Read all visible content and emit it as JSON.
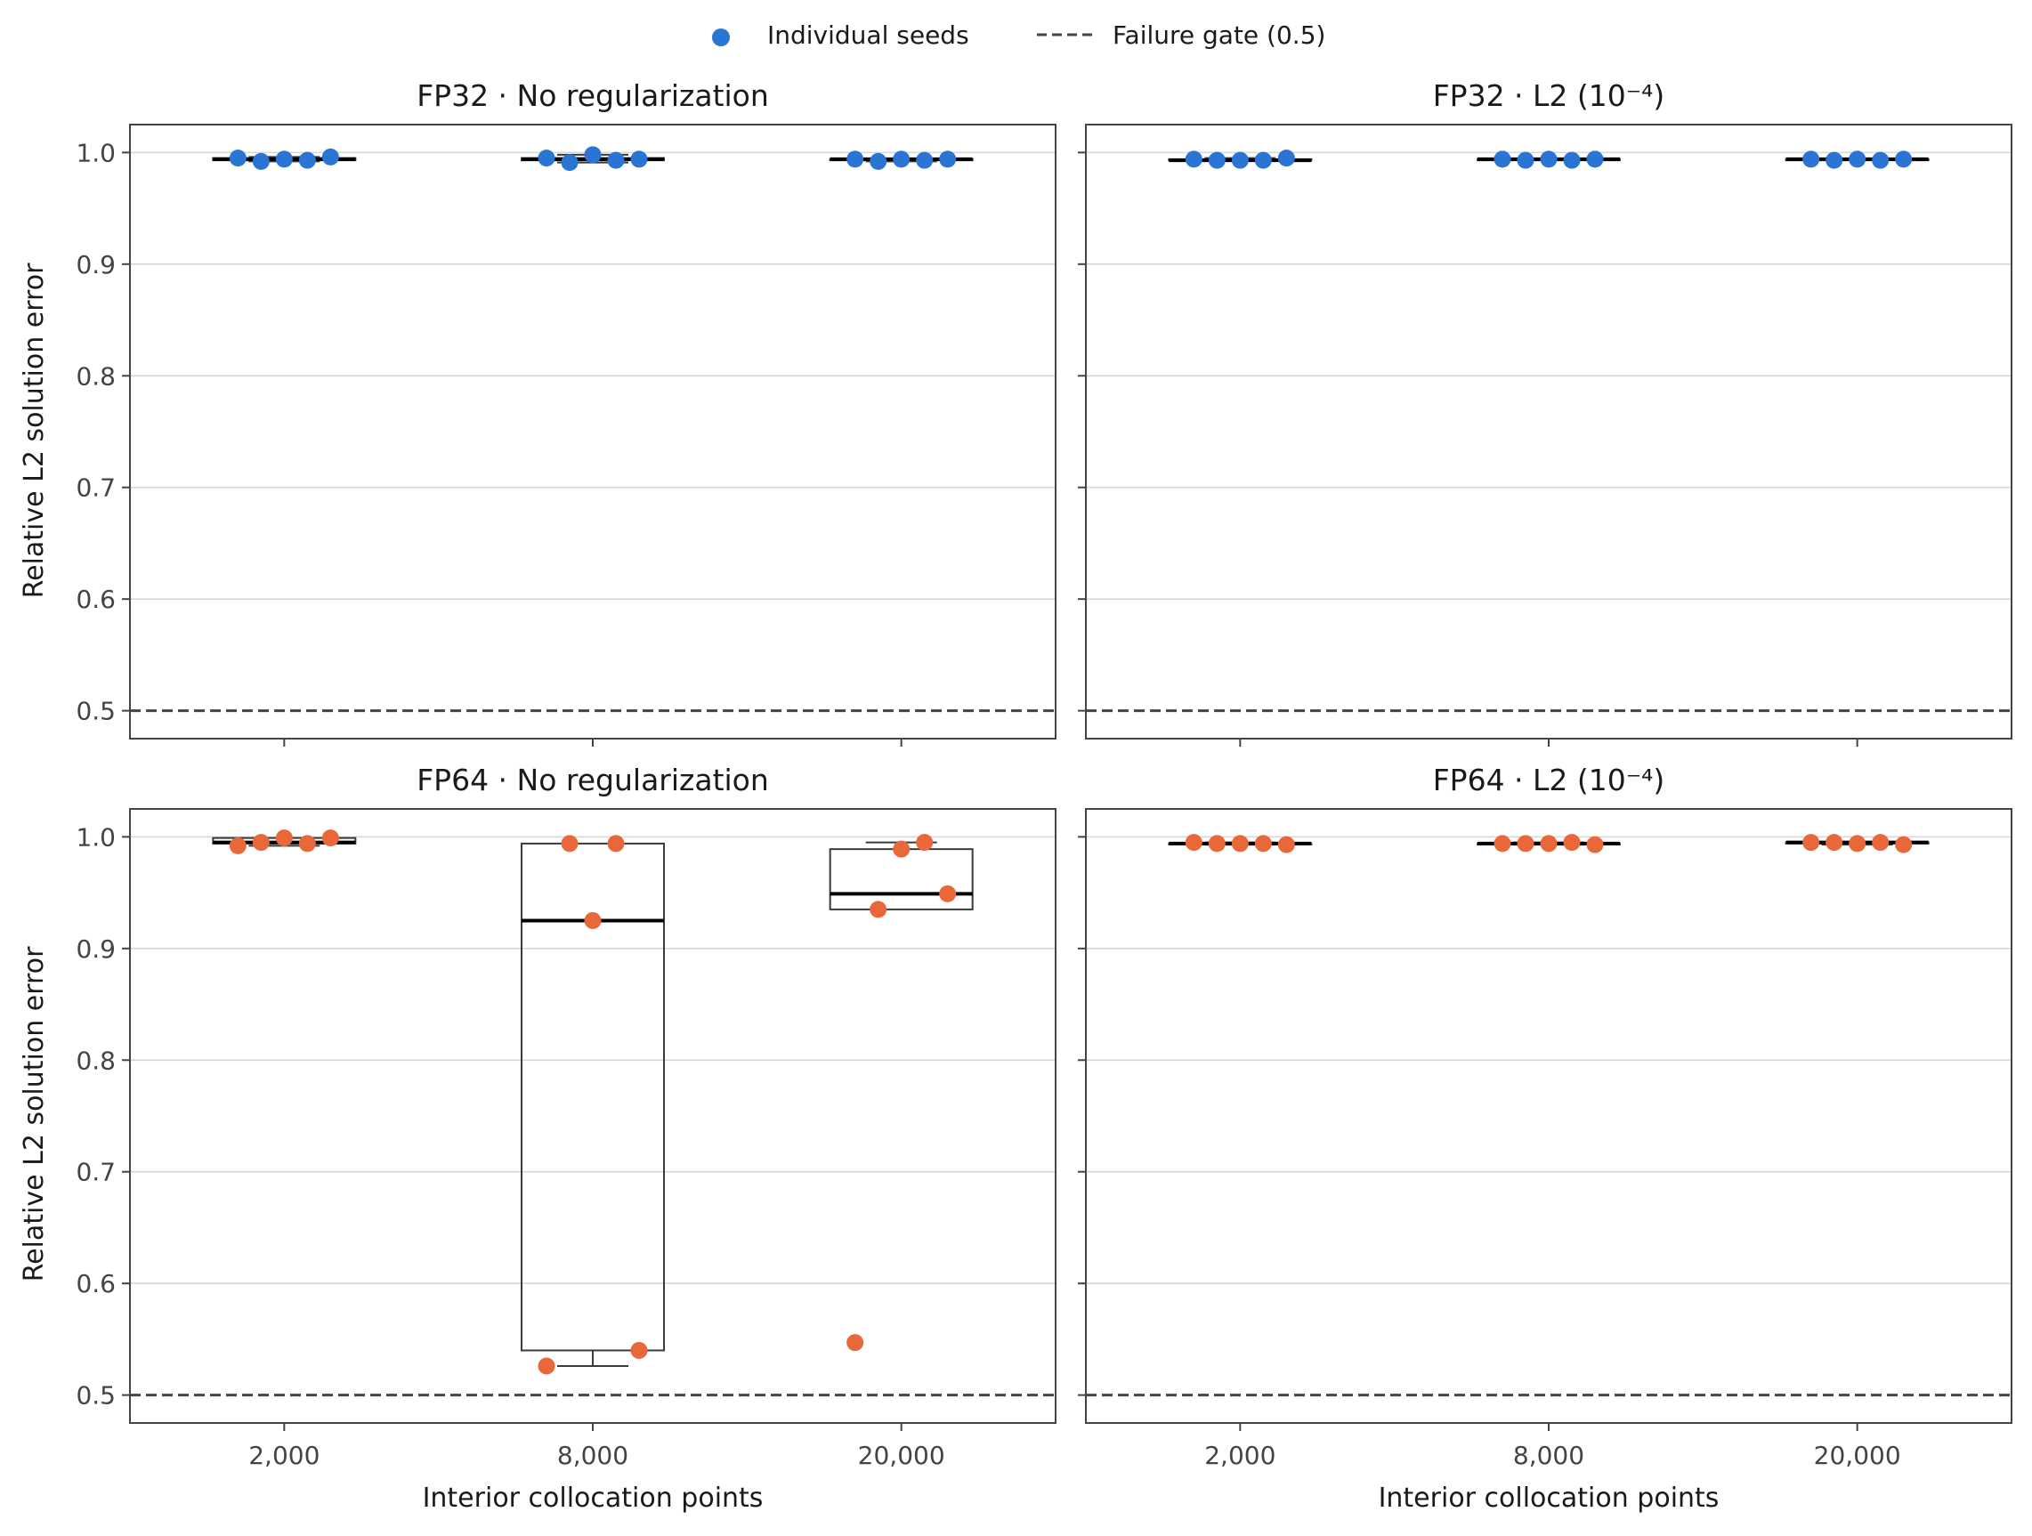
{
  "legend": {
    "seeds_label": "Individual seeds",
    "gate_label": "Failure gate (0.5)"
  },
  "colors": {
    "fp32": "#2a75d3",
    "fp64": "#e8683a",
    "gate": "#444444",
    "grid": "#d6d6d6",
    "box": "#3a3a3a"
  },
  "chart_data": {
    "type": "box",
    "xlabel": "Interior collocation points",
    "ylabel": "Relative L2 solution error",
    "categories": [
      "2,000",
      "8,000",
      "20,000"
    ],
    "ylim": [
      0.475,
      1.025
    ],
    "yticks": [
      "0.5",
      "0.6",
      "0.7",
      "0.8",
      "0.9",
      "1.0"
    ],
    "ytick_values": [
      0.5,
      0.6,
      0.7,
      0.8,
      0.9,
      1.0
    ],
    "failure_gate": 0.5,
    "legend_position": "top-center",
    "panels": [
      {
        "title": "FP32 · No regularization",
        "precision": "fp32",
        "groups": [
          {
            "category": "2,000",
            "seeds": [
              0.995,
              0.992,
              0.994,
              0.993,
              0.996
            ],
            "box": {
              "whislo": 0.992,
              "q1": 0.993,
              "med": 0.994,
              "q3": 0.995,
              "whishi": 0.996
            }
          },
          {
            "category": "8,000",
            "seeds": [
              0.995,
              0.991,
              0.998,
              0.993,
              0.994
            ],
            "box": {
              "whislo": 0.991,
              "q1": 0.993,
              "med": 0.994,
              "q3": 0.995,
              "whishi": 0.998
            }
          },
          {
            "category": "20,000",
            "seeds": [
              0.994,
              0.992,
              0.994,
              0.993,
              0.994
            ],
            "box": {
              "whislo": 0.992,
              "q1": 0.993,
              "med": 0.994,
              "q3": 0.994,
              "whishi": 0.994
            }
          }
        ]
      },
      {
        "title": "FP32 · L2 (10⁻⁴)",
        "precision": "fp32",
        "groups": [
          {
            "category": "2,000",
            "seeds": [
              0.994,
              0.993,
              0.993,
              0.993,
              0.995
            ],
            "box": {
              "whislo": 0.993,
              "q1": 0.993,
              "med": 0.993,
              "q3": 0.994,
              "whishi": 0.995
            }
          },
          {
            "category": "8,000",
            "seeds": [
              0.994,
              0.993,
              0.994,
              0.993,
              0.994
            ],
            "box": {
              "whislo": 0.993,
              "q1": 0.993,
              "med": 0.994,
              "q3": 0.994,
              "whishi": 0.994
            }
          },
          {
            "category": "20,000",
            "seeds": [
              0.994,
              0.993,
              0.994,
              0.993,
              0.994
            ],
            "box": {
              "whislo": 0.993,
              "q1": 0.993,
              "med": 0.994,
              "q3": 0.994,
              "whishi": 0.994
            }
          }
        ]
      },
      {
        "title": "FP64 · No regularization",
        "precision": "fp64",
        "groups": [
          {
            "category": "2,000",
            "seeds": [
              0.992,
              0.995,
              0.999,
              0.994,
              0.999
            ],
            "box": {
              "whislo": 0.992,
              "q1": 0.994,
              "med": 0.995,
              "q3": 0.999,
              "whishi": 0.999
            }
          },
          {
            "category": "8,000",
            "seeds": [
              0.526,
              0.994,
              0.925,
              0.994,
              0.54
            ],
            "box": {
              "whislo": 0.526,
              "q1": 0.54,
              "med": 0.925,
              "q3": 0.994,
              "whishi": 0.994
            }
          },
          {
            "category": "20,000",
            "seeds": [
              0.547,
              0.935,
              0.989,
              0.995,
              0.949
            ],
            "box": {
              "whislo": 0.935,
              "q1": 0.935,
              "med": 0.949,
              "q3": 0.989,
              "whishi": 0.995
            }
          }
        ]
      },
      {
        "title": "FP64 · L2 (10⁻⁴)",
        "precision": "fp64",
        "groups": [
          {
            "category": "2,000",
            "seeds": [
              0.995,
              0.994,
              0.994,
              0.994,
              0.993
            ],
            "box": {
              "whislo": 0.993,
              "q1": 0.994,
              "med": 0.994,
              "q3": 0.994,
              "whishi": 0.995
            }
          },
          {
            "category": "8,000",
            "seeds": [
              0.994,
              0.994,
              0.994,
              0.995,
              0.993
            ],
            "box": {
              "whislo": 0.993,
              "q1": 0.994,
              "med": 0.994,
              "q3": 0.994,
              "whishi": 0.995
            }
          },
          {
            "category": "20,000",
            "seeds": [
              0.995,
              0.995,
              0.994,
              0.995,
              0.993
            ],
            "box": {
              "whislo": 0.993,
              "q1": 0.994,
              "med": 0.995,
              "q3": 0.995,
              "whishi": 0.995
            }
          }
        ]
      }
    ]
  }
}
